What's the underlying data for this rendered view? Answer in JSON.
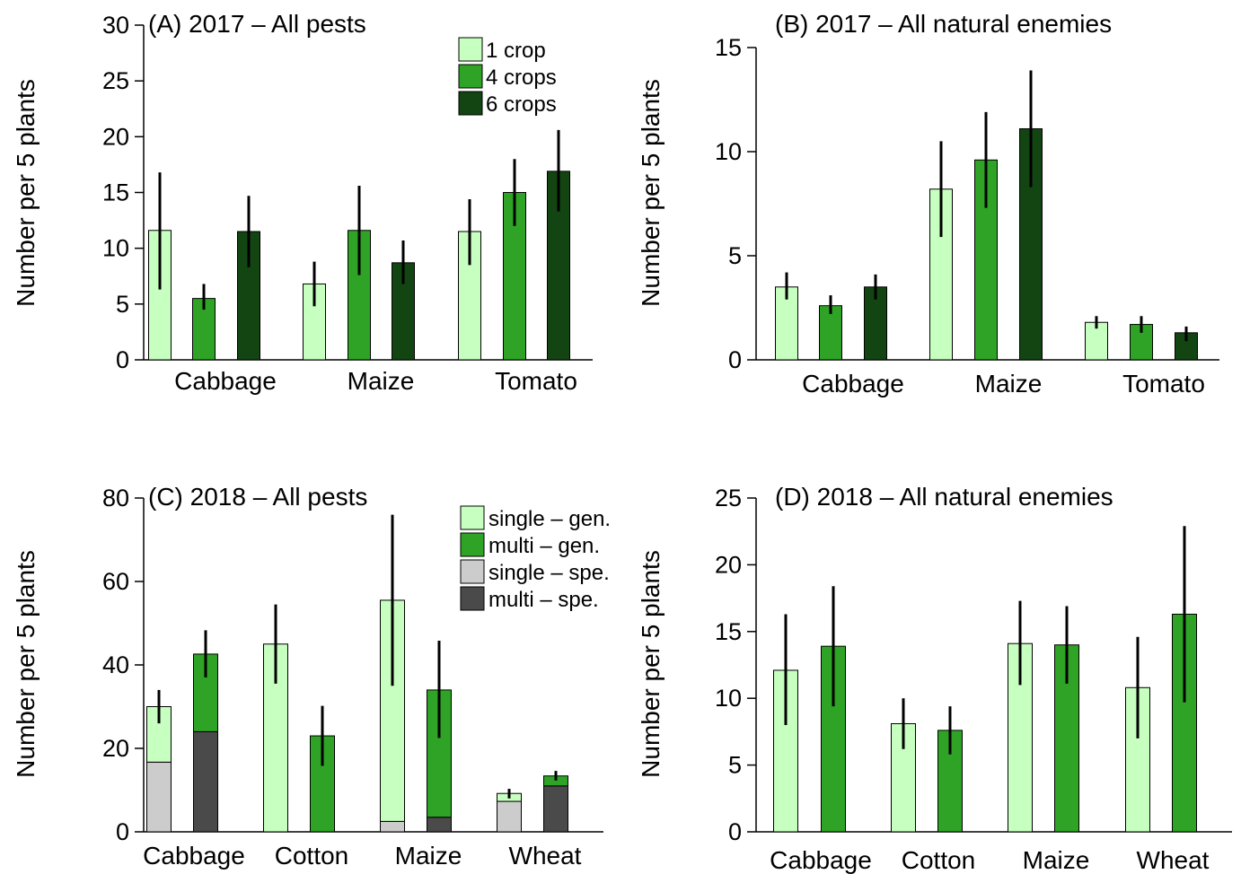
{
  "colors": {
    "light_green": "#c7ffc0",
    "mid_green": "#2ea325",
    "dark_green": "#124512",
    "light_grey": "#cccccc",
    "dark_grey": "#4a4a4a",
    "error_bar": "#000000",
    "axis": "#000000"
  },
  "chart_data": [
    {
      "id": "A",
      "type": "bar",
      "title": "(A) 2017 – All pests",
      "ylabel": "Number per 5 plants",
      "xlabel": "",
      "ylim": [
        0,
        30
      ],
      "yticks": [
        0,
        5,
        10,
        15,
        20,
        25,
        30
      ],
      "categories": [
        "Cabbage",
        "Maize",
        "Tomato"
      ],
      "legend": {
        "position": "top-right",
        "entries": [
          "1 crop",
          "4 crops",
          "6 crops"
        ]
      },
      "series": [
        {
          "name": "1 crop",
          "color": "#c7ffc0",
          "values": [
            11.6,
            6.8,
            11.5
          ],
          "errors": [
            [
              6.3,
              16.8
            ],
            [
              4.8,
              8.8
            ],
            [
              8.5,
              14.4
            ]
          ]
        },
        {
          "name": "4 crops",
          "color": "#2ea325",
          "values": [
            5.5,
            11.6,
            15.0
          ],
          "errors": [
            [
              4.5,
              6.8
            ],
            [
              7.6,
              15.6
            ],
            [
              12.0,
              18.0
            ]
          ]
        },
        {
          "name": "6 crops",
          "color": "#124512",
          "values": [
            11.5,
            8.7,
            16.9
          ],
          "errors": [
            [
              8.3,
              14.7
            ],
            [
              6.8,
              10.7
            ],
            [
              13.3,
              20.6
            ]
          ]
        }
      ]
    },
    {
      "id": "B",
      "type": "bar",
      "title": "(B) 2017 – All natural enemies",
      "ylabel": "Number per 5 plants",
      "xlabel": "",
      "ylim": [
        0,
        15
      ],
      "yticks": [
        0,
        5,
        10,
        15
      ],
      "categories": [
        "Cabbage",
        "Maize",
        "Tomato"
      ],
      "series": [
        {
          "name": "1 crop",
          "color": "#c7ffc0",
          "values": [
            3.5,
            8.2,
            1.8
          ],
          "errors": [
            [
              2.9,
              4.2
            ],
            [
              5.9,
              10.5
            ],
            [
              1.5,
              2.1
            ]
          ]
        },
        {
          "name": "4 crops",
          "color": "#2ea325",
          "values": [
            2.6,
            9.6,
            1.7
          ],
          "errors": [
            [
              2.2,
              3.1
            ],
            [
              7.3,
              11.9
            ],
            [
              1.3,
              2.1
            ]
          ]
        },
        {
          "name": "6 crops",
          "color": "#124512",
          "values": [
            3.5,
            11.1,
            1.3
          ],
          "errors": [
            [
              2.9,
              4.1
            ],
            [
              8.3,
              13.9
            ],
            [
              0.9,
              1.6
            ]
          ]
        }
      ]
    },
    {
      "id": "C",
      "type": "bar",
      "stacked": true,
      "title": "(C) 2018 – All pests",
      "ylabel": "Number per 5 plants",
      "xlabel": "",
      "ylim": [
        0,
        80
      ],
      "yticks": [
        0,
        20,
        40,
        60,
        80
      ],
      "categories": [
        "Cabbage",
        "Cotton",
        "Maize",
        "Wheat"
      ],
      "legend": {
        "position": "top-right",
        "entries": [
          {
            "name": "single – gen.",
            "color": "#c7ffc0"
          },
          {
            "name": "multi – gen.",
            "color": "#2ea325"
          },
          {
            "name": "single – spe.",
            "color": "#cccccc"
          },
          {
            "name": "multi – spe.",
            "color": "#4a4a4a"
          }
        ]
      },
      "bars": [
        {
          "category": "Cabbage",
          "system": "single",
          "specialist": 16.7,
          "total": 30.0,
          "errors": [
            26.0,
            34.0
          ]
        },
        {
          "category": "Cabbage",
          "system": "multi",
          "specialist": 24.0,
          "total": 42.6,
          "errors": [
            37.0,
            48.3
          ]
        },
        {
          "category": "Cotton",
          "system": "single",
          "specialist": 0,
          "total": 45.0,
          "errors": [
            35.5,
            54.5
          ]
        },
        {
          "category": "Cotton",
          "system": "multi",
          "specialist": 0,
          "total": 23.0,
          "errors": [
            15.8,
            30.2
          ]
        },
        {
          "category": "Maize",
          "system": "single",
          "specialist": 2.5,
          "total": 55.5,
          "errors": [
            35.0,
            76.0
          ]
        },
        {
          "category": "Maize",
          "system": "multi",
          "specialist": 3.5,
          "total": 34.0,
          "errors": [
            22.5,
            45.8
          ]
        },
        {
          "category": "Wheat",
          "system": "single",
          "specialist": 7.3,
          "total": 9.2,
          "errors": [
            8.0,
            10.3
          ]
        },
        {
          "category": "Wheat",
          "system": "multi",
          "specialist": 11.0,
          "total": 13.4,
          "errors": [
            12.3,
            14.6
          ]
        }
      ]
    },
    {
      "id": "D",
      "type": "bar",
      "title": "(D) 2018 – All natural enemies",
      "ylabel": "Number per 5 plants",
      "xlabel": "",
      "ylim": [
        0,
        25
      ],
      "yticks": [
        0,
        5,
        10,
        15,
        20,
        25
      ],
      "categories": [
        "Cabbage",
        "Cotton",
        "Maize",
        "Wheat"
      ],
      "series": [
        {
          "name": "single",
          "color": "#c7ffc0",
          "values": [
            12.1,
            8.1,
            14.1,
            10.8
          ],
          "errors": [
            [
              8.0,
              16.3
            ],
            [
              6.2,
              10.0
            ],
            [
              11.0,
              17.3
            ],
            [
              7.0,
              14.6
            ]
          ]
        },
        {
          "name": "multi",
          "color": "#2ea325",
          "values": [
            13.9,
            7.6,
            14.0,
            16.3
          ],
          "errors": [
            [
              9.4,
              18.4
            ],
            [
              5.8,
              9.4
            ],
            [
              11.1,
              16.9
            ],
            [
              9.7,
              22.9
            ]
          ]
        }
      ]
    }
  ]
}
